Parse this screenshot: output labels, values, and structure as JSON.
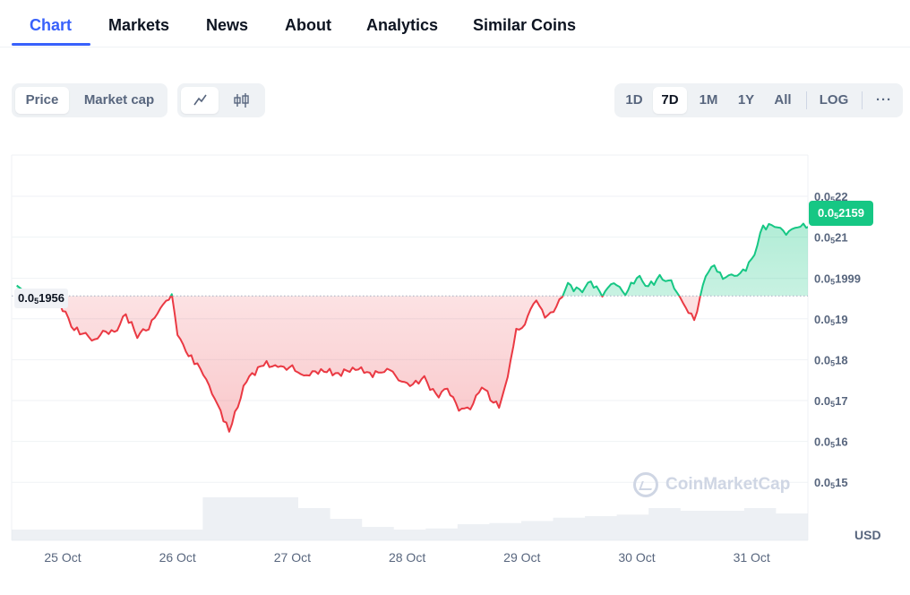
{
  "tabs": [
    "Chart",
    "Markets",
    "News",
    "About",
    "Analytics",
    "Similar Coins"
  ],
  "toolbar": {
    "metric": {
      "price": "Price",
      "market_cap": "Market cap"
    },
    "chart_mode_icons": [
      "line-chart-icon",
      "candlestick-icon"
    ],
    "ranges": [
      "1D",
      "7D",
      "1M",
      "1Y",
      "All"
    ],
    "log": "LOG",
    "more": "···"
  },
  "chart_data": {
    "type": "area",
    "x_labels": [
      "25 Oct",
      "26 Oct",
      "27 Oct",
      "28 Oct",
      "29 Oct",
      "30 Oct",
      "31 Oct"
    ],
    "y_ticks": [
      {
        "prefix": "0.0",
        "sub": "5",
        "rest": "22",
        "value": 2.2e-07
      },
      {
        "prefix": "0.0",
        "sub": "5",
        "rest": "21",
        "value": 2.1e-07
      },
      {
        "prefix": "0.0",
        "sub": "5",
        "rest": "1999",
        "value": 1.999e-07
      },
      {
        "prefix": "0.0",
        "sub": "5",
        "rest": "19",
        "value": 1.9e-07
      },
      {
        "prefix": "0.0",
        "sub": "5",
        "rest": "18",
        "value": 1.8e-07
      },
      {
        "prefix": "0.0",
        "sub": "5",
        "rest": "17",
        "value": 1.7e-07
      },
      {
        "prefix": "0.0",
        "sub": "5",
        "rest": "16",
        "value": 1.6e-07
      },
      {
        "prefix": "0.0",
        "sub": "5",
        "rest": "15",
        "value": 1.5e-07
      }
    ],
    "ylim": [
      1.46e-07,
      2.31e-07
    ],
    "currency": "USD",
    "open_price": {
      "prefix": "0.0",
      "sub": "5",
      "rest": "1956",
      "value": 1.956e-07
    },
    "current_price": {
      "prefix": "0.0",
      "sub": "5",
      "rest": "2159",
      "value": 2.159e-07
    },
    "series_x": [
      -0.4,
      -0.3,
      -0.15,
      0.0,
      0.1,
      0.2,
      0.28,
      0.35,
      0.45,
      0.55,
      0.65,
      0.75,
      0.85,
      0.95,
      1.0,
      1.05,
      1.12,
      1.2,
      1.3,
      1.45,
      1.6,
      1.75,
      1.9,
      2.0,
      2.1,
      2.25,
      2.4,
      2.55,
      2.7,
      2.85,
      2.95,
      3.05,
      3.15,
      3.25,
      3.35,
      3.45,
      3.55,
      3.65,
      3.75,
      3.8,
      3.85,
      3.9,
      3.95,
      4.0,
      4.05,
      4.1,
      4.15,
      4.2,
      4.3,
      4.4,
      4.5,
      4.6,
      4.7,
      4.8,
      4.9,
      5.0,
      5.1,
      5.2,
      5.3,
      5.4,
      5.5,
      5.6,
      5.65,
      5.7,
      5.75,
      5.8,
      5.9,
      6.0,
      6.1,
      6.2,
      6.3,
      6.4,
      6.5,
      6.55
    ],
    "series_y": [
      1.985e-07,
      1.955e-07,
      1.965e-07,
      1.925e-07,
      1.875e-07,
      1.86e-07,
      1.845e-07,
      1.87e-07,
      1.865e-07,
      1.91e-07,
      1.86e-07,
      1.88e-07,
      1.925e-07,
      1.96e-07,
      1.86e-07,
      1.83e-07,
      1.805e-07,
      1.78e-07,
      1.72e-07,
      1.625e-07,
      1.75e-07,
      1.79e-07,
      1.78e-07,
      1.78e-07,
      1.76e-07,
      1.775e-07,
      1.765e-07,
      1.78e-07,
      1.765e-07,
      1.775e-07,
      1.745e-07,
      1.74e-07,
      1.755e-07,
      1.71e-07,
      1.73e-07,
      1.68e-07,
      1.68e-07,
      1.735e-07,
      1.7e-07,
      1.68e-07,
      1.725e-07,
      1.795e-07,
      1.875e-07,
      1.875e-07,
      1.91e-07,
      1.945e-07,
      1.935e-07,
      1.9e-07,
      1.93e-07,
      1.985e-07,
      1.965e-07,
      1.99e-07,
      1.96e-07,
      1.99e-07,
      1.96e-07,
      2.005e-07,
      1.98e-07,
      2e-07,
      1.99e-07,
      1.94e-07,
      1.895e-07,
      2.005e-07,
      2.035e-07,
      2.02e-07,
      1.995e-07,
      2.005e-07,
      2.01e-07,
      2.04e-07,
      2.125e-07,
      2.13e-07,
      2.11e-07,
      2.125e-07,
      2.13e-07,
      2.17e-07
    ],
    "volume": [
      0.2,
      0.2,
      0.2,
      0.2,
      0.2,
      0.2,
      0.8,
      0.8,
      0.8,
      0.6,
      0.4,
      0.25,
      0.2,
      0.22,
      0.3,
      0.32,
      0.36,
      0.42,
      0.45,
      0.48,
      0.6,
      0.55,
      0.55,
      0.6,
      0.5
    ]
  },
  "watermark": "CoinMarketCap"
}
